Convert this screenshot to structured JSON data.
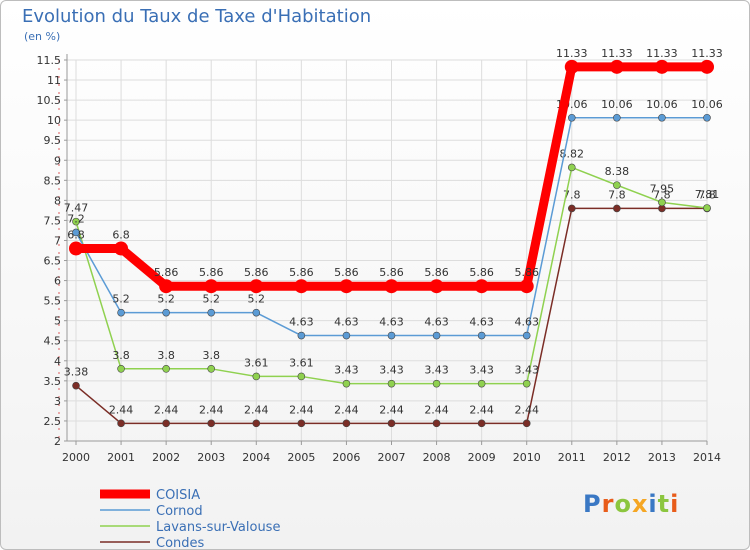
{
  "title": "Evolution du Taux de Taxe d'Habitation",
  "unit_label": "(en %)",
  "logo": {
    "letters": [
      {
        "ch": "P",
        "color": "#3a78c4"
      },
      {
        "ch": "r",
        "color": "#e85c1a"
      },
      {
        "ch": "o",
        "color": "#8cc63f"
      },
      {
        "ch": "x",
        "color": "#f5a623"
      },
      {
        "ch": "i",
        "color": "#3a78c4"
      },
      {
        "ch": "t",
        "color": "#8cc63f"
      },
      {
        "ch": "i",
        "color": "#e85c1a"
      }
    ]
  },
  "chart_data": {
    "type": "line",
    "title": "Evolution du Taux de Taxe d'Habitation",
    "ylabel": "(en %)",
    "x": [
      "2000",
      "2001",
      "2002",
      "2003",
      "2004",
      "2005",
      "2006",
      "2007",
      "2008",
      "2009",
      "2010",
      "2011",
      "2012",
      "2013",
      "2014"
    ],
    "ylim": [
      2,
      11.5
    ],
    "yticks": [
      "2",
      "2.5",
      "3",
      "3.5",
      "4",
      "4.5",
      "5",
      "5.5",
      "6",
      "6.5",
      "7",
      "7.5",
      "8",
      "8.5",
      "9",
      "9.5",
      "10",
      "10.5",
      "11",
      "11.5"
    ],
    "legend_position": "bottom-left",
    "series": [
      {
        "name": "COISIA",
        "color": "#ff0000",
        "values": [
          6.8,
          6.8,
          5.86,
          5.86,
          5.86,
          5.86,
          5.86,
          5.86,
          5.86,
          5.86,
          5.86,
          11.33,
          11.33,
          11.33,
          11.33
        ],
        "labels": [
          "6.8",
          "6.8",
          "5.86",
          "5.86",
          "5.86",
          "5.86",
          "5.86",
          "5.86",
          "5.86",
          "5.86",
          "5.86",
          "11.33",
          "11.33",
          "11.33",
          "11.33"
        ]
      },
      {
        "name": "Cornod",
        "color": "#5b9bd5",
        "values": [
          7.2,
          5.2,
          5.2,
          5.2,
          5.2,
          4.63,
          4.63,
          4.63,
          4.63,
          4.63,
          4.63,
          10.06,
          10.06,
          10.06,
          10.06
        ],
        "labels": [
          "7.2",
          "5.2",
          "5.2",
          "5.2",
          "5.2",
          "4.63",
          "4.63",
          "4.63",
          "4.63",
          "4.63",
          "4.63",
          "10.06",
          "10.06",
          "10.06",
          "10.06"
        ]
      },
      {
        "name": "Lavans-sur-Valouse",
        "color": "#8fd14f",
        "values": [
          7.47,
          3.8,
          3.8,
          3.8,
          3.61,
          3.61,
          3.43,
          3.43,
          3.43,
          3.43,
          3.43,
          8.82,
          8.38,
          7.95,
          7.81
        ],
        "labels": [
          "7.47",
          "3.8",
          "3.8",
          "3.8",
          "3.61",
          "3.61",
          "3.43",
          "3.43",
          "3.43",
          "3.43",
          "3.43",
          "8.82",
          "8.38",
          "7.95",
          "7.81"
        ]
      },
      {
        "name": "Condes",
        "color": "#7b2d26",
        "values": [
          3.38,
          2.44,
          2.44,
          2.44,
          2.44,
          2.44,
          2.44,
          2.44,
          2.44,
          2.44,
          2.44,
          7.8,
          7.8,
          7.8,
          7.8
        ],
        "labels": [
          "3.38",
          "2.44",
          "2.44",
          "2.44",
          "2.44",
          "2.44",
          "2.44",
          "2.44",
          "2.44",
          "2.44",
          "2.44",
          "7.8",
          "7.8",
          "7.8",
          "7.8"
        ]
      }
    ]
  }
}
